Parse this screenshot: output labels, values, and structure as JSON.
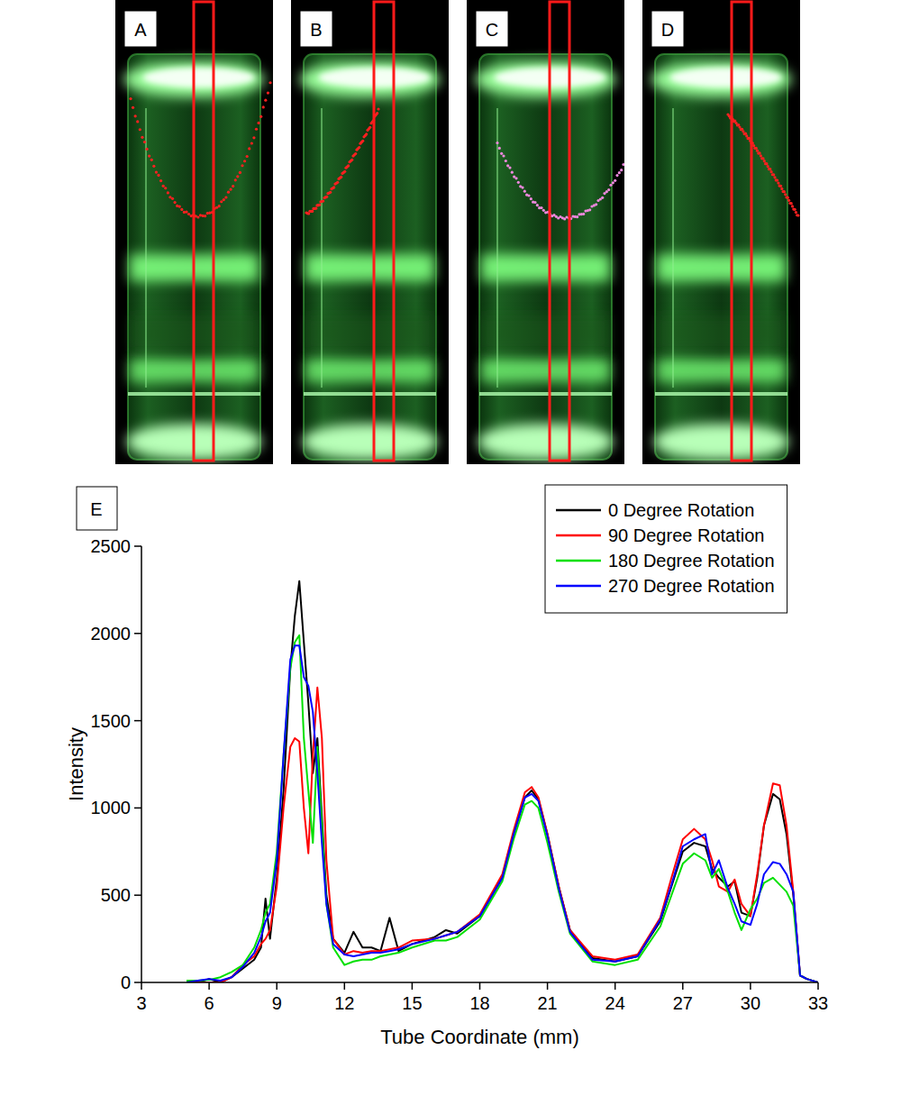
{
  "panels": [
    {
      "label": "A"
    },
    {
      "label": "B"
    },
    {
      "label": "C"
    },
    {
      "label": "D"
    }
  ],
  "chart_data": {
    "type": "line",
    "panel_label": "E",
    "xlabel": "Tube Coordinate (mm)",
    "ylabel": "Intensity",
    "xlim": [
      3,
      33
    ],
    "xticks": [
      3,
      6,
      9,
      12,
      15,
      18,
      21,
      24,
      27,
      30,
      33
    ],
    "ylim": [
      0,
      2500
    ],
    "yticks": [
      0,
      500,
      1000,
      1500,
      2000,
      2500
    ],
    "grid": false,
    "legend": "top-right",
    "x": [
      5,
      5.5,
      6,
      6.5,
      7,
      7.5,
      8,
      8.3,
      8.5,
      8.7,
      9,
      9.3,
      9.6,
      9.8,
      10,
      10.2,
      10.4,
      10.6,
      10.8,
      11,
      11.2,
      11.5,
      12,
      12.4,
      12.8,
      13.2,
      13.6,
      14,
      14.4,
      15,
      16,
      16.5,
      17,
      18,
      19,
      19.5,
      20,
      20.3,
      20.6,
      21,
      21.5,
      22,
      23,
      24,
      25,
      26,
      26.5,
      27,
      27.5,
      28,
      28.3,
      28.6,
      29,
      29.3,
      29.6,
      30,
      30.3,
      30.6,
      31,
      31.3,
      31.6,
      31.9,
      32.2,
      32.5,
      33
    ],
    "series": [
      {
        "name": "0 Degree Rotation",
        "color": "#000000",
        "values": [
          0,
          0,
          20,
          0,
          30,
          80,
          130,
          200,
          480,
          250,
          600,
          1100,
          1800,
          2100,
          2300,
          1950,
          1600,
          1200,
          1400,
          950,
          500,
          250,
          170,
          290,
          200,
          200,
          180,
          370,
          180,
          220,
          260,
          300,
          280,
          380,
          600,
          850,
          1060,
          1100,
          1050,
          850,
          550,
          300,
          140,
          120,
          150,
          350,
          550,
          750,
          800,
          780,
          650,
          600,
          550,
          580,
          400,
          380,
          600,
          900,
          1080,
          1050,
          850,
          500,
          40,
          20,
          0
        ]
      },
      {
        "name": "90 Degree Rotation",
        "color": "#ff0000",
        "values": [
          0,
          0,
          0,
          0,
          30,
          100,
          150,
          220,
          250,
          300,
          550,
          1000,
          1350,
          1400,
          1380,
          1000,
          740,
          1300,
          1690,
          1400,
          700,
          250,
          160,
          180,
          170,
          180,
          180,
          190,
          200,
          240,
          250,
          270,
          290,
          390,
          620,
          870,
          1090,
          1120,
          1060,
          850,
          550,
          300,
          150,
          130,
          160,
          370,
          600,
          820,
          880,
          820,
          700,
          550,
          520,
          590,
          450,
          380,
          620,
          900,
          1140,
          1130,
          900,
          520,
          40,
          20,
          0
        ]
      },
      {
        "name": "180 Degree Rotation",
        "color": "#00e000",
        "values": [
          10,
          10,
          15,
          30,
          60,
          100,
          200,
          300,
          400,
          450,
          750,
          1300,
          1800,
          1950,
          1990,
          1400,
          1100,
          800,
          1350,
          900,
          450,
          200,
          100,
          120,
          130,
          130,
          150,
          160,
          170,
          200,
          240,
          240,
          260,
          360,
          580,
          820,
          1020,
          1040,
          1000,
          800,
          520,
          280,
          120,
          100,
          130,
          320,
          500,
          680,
          740,
          700,
          600,
          650,
          520,
          400,
          300,
          420,
          480,
          570,
          600,
          560,
          520,
          440,
          40,
          20,
          0
        ]
      },
      {
        "name": "270 Degree Rotation",
        "color": "#0000ff",
        "values": [
          0,
          10,
          20,
          10,
          30,
          90,
          170,
          260,
          350,
          400,
          700,
          1300,
          1850,
          1930,
          1930,
          1750,
          1700,
          1550,
          1200,
          800,
          450,
          220,
          160,
          150,
          160,
          170,
          170,
          180,
          190,
          220,
          250,
          270,
          290,
          380,
          600,
          850,
          1060,
          1080,
          1040,
          840,
          540,
          290,
          130,
          120,
          150,
          360,
          560,
          780,
          820,
          850,
          620,
          700,
          540,
          450,
          350,
          330,
          450,
          620,
          690,
          680,
          620,
          520,
          40,
          20,
          0
        ]
      }
    ]
  }
}
